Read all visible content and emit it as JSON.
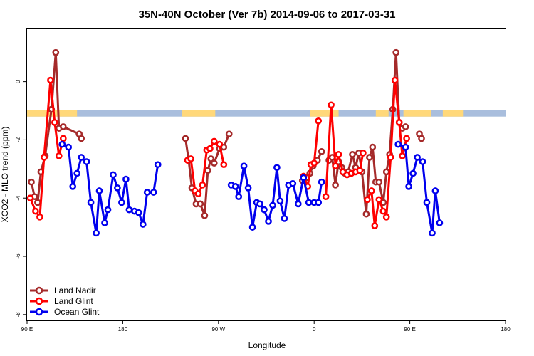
{
  "chart_data": {
    "type": "line",
    "title": "35N-40N October (Ver 7b)   2014-09-06 to 2017-03-31",
    "xlabel": "Longitude",
    "ylabel": "XCO2 - MLO trend (ppm)",
    "xlim": [
      90,
      450
    ],
    "ylim": [
      -8.2,
      1.8
    ],
    "x_ticks": [
      {
        "value": 90,
        "label": "90 E"
      },
      {
        "value": 180,
        "label": "180"
      },
      {
        "value": 270,
        "label": "90 W"
      },
      {
        "value": 360,
        "label": "0"
      },
      {
        "value": 450,
        "label": "90 E"
      },
      {
        "value": 540,
        "label": "180"
      }
    ],
    "xlim_full": [
      90,
      540
    ],
    "y_ticks": [
      {
        "value": 0,
        "label": "0"
      },
      {
        "value": -2,
        "label": "-2"
      },
      {
        "value": -4,
        "label": "-4"
      },
      {
        "value": -6,
        "label": "-6"
      },
      {
        "value": -8,
        "label": "-8"
      }
    ],
    "grid": false,
    "legend_position": "bottom-left",
    "land_band": {
      "y_range": [
        -1.2,
        -0.98
      ],
      "land_color": "#FFD87A",
      "ocean_color": "#A9BEDD",
      "land_segments": [
        [
          90,
          137
        ],
        [
          236,
          267
        ],
        [
          356,
          383
        ],
        [
          418,
          430
        ],
        [
          444,
          470
        ],
        [
          481,
          500
        ]
      ]
    },
    "series": [
      {
        "name": "Land Nadir",
        "color": "#A52A2A",
        "points": [
          [
            94,
            -3.45
          ],
          [
            97,
            -3.95
          ],
          [
            100,
            -4.15
          ],
          [
            103,
            -3.1
          ],
          [
            107,
            -2.55
          ],
          [
            113,
            -0.95
          ],
          [
            117,
            1.0
          ],
          [
            120,
            -1.6
          ],
          [
            null,
            null
          ],
          [
            124,
            -1.55
          ],
          [
            139,
            -1.8
          ],
          [
            141,
            -1.95
          ],
          [
            null,
            null
          ],
          [
            239,
            -1.95
          ],
          [
            242,
            -2.7
          ],
          [
            245,
            -3.65
          ],
          [
            249,
            -4.2
          ],
          [
            253,
            -4.2
          ],
          [
            257,
            -4.6
          ],
          [
            260,
            -3.05
          ],
          [
            263,
            -2.65
          ],
          [
            266,
            -2.8
          ],
          [
            271,
            -2.3
          ],
          [
            275,
            -2.25
          ],
          [
            280,
            -1.8
          ],
          [
            null,
            null
          ],
          [
            349,
            -3.4
          ],
          [
            353,
            -3.3
          ],
          [
            356,
            -3.15
          ],
          [
            359,
            -2.9
          ],
          [
            363,
            -2.7
          ],
          [
            367,
            -2.4
          ],
          [
            null,
            null
          ],
          [
            374,
            -2.7
          ],
          [
            377,
            -2.6
          ],
          [
            380,
            -3.55
          ],
          [
            383,
            -2.75
          ],
          [
            386,
            -2.95
          ],
          [
            389,
            -3.15
          ],
          [
            392,
            -3.1
          ],
          [
            396,
            -2.5
          ],
          [
            399,
            -2.95
          ],
          [
            402,
            -2.45
          ],
          [
            405,
            -3.1
          ],
          [
            409,
            -4.55
          ],
          [
            412,
            -2.6
          ],
          [
            415,
            -2.25
          ],
          [
            418,
            -3.45
          ],
          [
            421,
            -3.45
          ],
          [
            425,
            -4.15
          ],
          [
            428,
            -3.1
          ],
          [
            431,
            -2.5
          ],
          [
            434,
            -0.95
          ],
          [
            437,
            1.0
          ],
          [
            440,
            -1.4
          ],
          [
            443,
            -1.6
          ],
          [
            446,
            -1.55
          ],
          [
            null,
            null
          ],
          [
            459,
            -1.8
          ],
          [
            461,
            -1.95
          ]
        ]
      },
      {
        "name": "Land Glint",
        "color": "#FF0000",
        "points": [
          [
            93,
            -4.0
          ],
          [
            98,
            -4.45
          ],
          [
            102,
            -4.65
          ],
          [
            106,
            -2.6
          ],
          [
            112,
            0.05
          ],
          [
            116,
            -1.4
          ],
          [
            120,
            -2.55
          ],
          [
            124,
            -1.95
          ],
          [
            null,
            null
          ],
          [
            241,
            -2.7
          ],
          [
            244,
            -2.65
          ],
          [
            248,
            -3.75
          ],
          [
            251,
            -3.85
          ],
          [
            255,
            -3.55
          ],
          [
            259,
            -2.35
          ],
          [
            262,
            -2.3
          ],
          [
            266,
            -2.05
          ],
          [
            271,
            -2.15
          ],
          [
            275,
            -2.85
          ],
          [
            null,
            null
          ],
          [
            350,
            -3.25
          ],
          [
            354,
            -3.6
          ],
          [
            357,
            -2.85
          ],
          [
            360,
            -2.8
          ],
          [
            364,
            -1.35
          ],
          [
            null,
            null
          ],
          [
            371,
            -3.95
          ],
          [
            376,
            -0.8
          ],
          [
            380,
            -2.9
          ],
          [
            383,
            -2.5
          ],
          [
            387,
            -3.1
          ],
          [
            391,
            -3.2
          ],
          [
            395,
            -3.15
          ],
          [
            399,
            -3.1
          ],
          [
            403,
            -3.05
          ],
          [
            406,
            -2.45
          ],
          [
            null,
            null
          ],
          [
            410,
            -4.05
          ],
          [
            414,
            -3.75
          ],
          [
            417,
            -4.95
          ],
          [
            421,
            -4.05
          ],
          [
            425,
            -4.45
          ],
          [
            428,
            -4.65
          ],
          [
            432,
            -2.6
          ],
          [
            436,
            0.05
          ],
          [
            440,
            -1.4
          ],
          [
            443,
            -2.55
          ],
          [
            447,
            -1.95
          ]
        ]
      },
      {
        "name": "Ocean Glint",
        "color": "#0000EE",
        "points": [
          [
            123,
            -2.15
          ],
          [
            129,
            -2.25
          ],
          [
            133,
            -3.6
          ],
          [
            137,
            -3.15
          ],
          [
            141,
            -2.6
          ],
          [
            146,
            -2.75
          ],
          [
            150,
            -4.15
          ],
          [
            155,
            -5.2
          ],
          [
            158,
            -3.75
          ],
          [
            163,
            -4.85
          ],
          [
            166,
            -4.4
          ],
          [
            171,
            -3.2
          ],
          [
            175,
            -3.65
          ],
          [
            179,
            -4.15
          ],
          [
            183,
            -3.35
          ],
          [
            186,
            -4.4
          ],
          [
            191,
            -4.45
          ],
          [
            195,
            -4.5
          ],
          [
            199,
            -4.9
          ],
          [
            203,
            -3.8
          ],
          [
            209,
            -3.8
          ],
          [
            213,
            -2.85
          ],
          [
            null,
            null
          ],
          [
            282,
            -3.55
          ],
          [
            286,
            -3.6
          ],
          [
            289,
            -3.95
          ],
          [
            294,
            -2.9
          ],
          [
            298,
            -3.65
          ],
          [
            302,
            -5.0
          ],
          [
            306,
            -4.15
          ],
          [
            309,
            -4.2
          ],
          [
            313,
            -4.4
          ],
          [
            317,
            -4.8
          ],
          [
            321,
            -4.25
          ],
          [
            325,
            -2.95
          ],
          [
            328,
            -4.1
          ],
          [
            332,
            -4.7
          ],
          [
            336,
            -3.55
          ],
          [
            null,
            null
          ],
          [
            336,
            -3.55
          ],
          [
            340,
            -3.5
          ],
          [
            345,
            -4.2
          ],
          [
            350,
            -3.3
          ],
          [
            355,
            -4.15
          ],
          [
            360,
            -4.15
          ],
          [
            364,
            -4.15
          ],
          [
            367,
            -3.45
          ],
          [
            null,
            null
          ],
          [
            439,
            -2.15
          ],
          [
            446,
            -2.25
          ],
          [
            449,
            -3.6
          ],
          [
            453,
            -3.15
          ],
          [
            457,
            -2.6
          ],
          [
            462,
            -2.75
          ],
          [
            466,
            -4.15
          ],
          [
            471,
            -5.2
          ],
          [
            474,
            -3.75
          ],
          [
            478,
            -4.85
          ]
        ]
      }
    ]
  }
}
